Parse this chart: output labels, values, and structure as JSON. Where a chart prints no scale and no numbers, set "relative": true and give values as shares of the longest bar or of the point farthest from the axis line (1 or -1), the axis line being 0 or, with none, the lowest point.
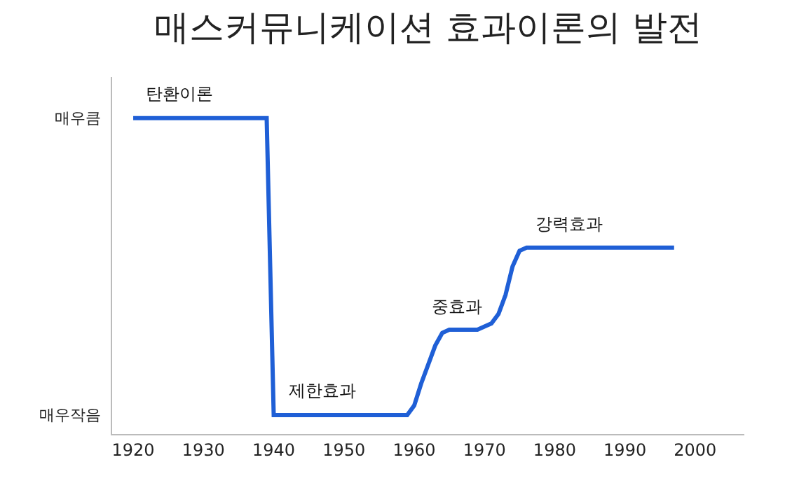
{
  "chart_data": {
    "type": "line",
    "title": "매스커뮤니케이션 효과이론의 발전",
    "relative": true,
    "x": [
      1920,
      1939,
      1940,
      1959,
      1960,
      1961,
      1962,
      1963,
      1964,
      1965,
      1969,
      1970,
      1971,
      1972,
      1973,
      1974,
      1975,
      1976,
      1997
    ],
    "series": [
      {
        "color": "#1f5fd6",
        "values": [
          1,
          1,
          0.06,
          0.06,
          0.09,
          0.16,
          0.22,
          0.28,
          0.32,
          0.33,
          0.33,
          0.34,
          0.35,
          0.38,
          0.44,
          0.53,
          0.58,
          0.59,
          0.59
        ]
      }
    ],
    "xlim": [
      1917,
      2007
    ],
    "xticks": [
      1920,
      1930,
      1940,
      1950,
      1960,
      1970,
      1980,
      1990,
      2000
    ],
    "grid": false,
    "marker": "none",
    "line_style": "solid",
    "annotations": [
      "매우큼",
      "매우작음",
      {
        "text": "탄환이론",
        "x": 1926.5,
        "y": 1
      },
      {
        "text": "제한효과",
        "x": 1947,
        "y": 0.06
      },
      {
        "text": "중효과",
        "x": 1966,
        "y": 0.33
      },
      {
        "text": "강력효과",
        "x": 1982,
        "y": 0.59
      }
    ]
  }
}
